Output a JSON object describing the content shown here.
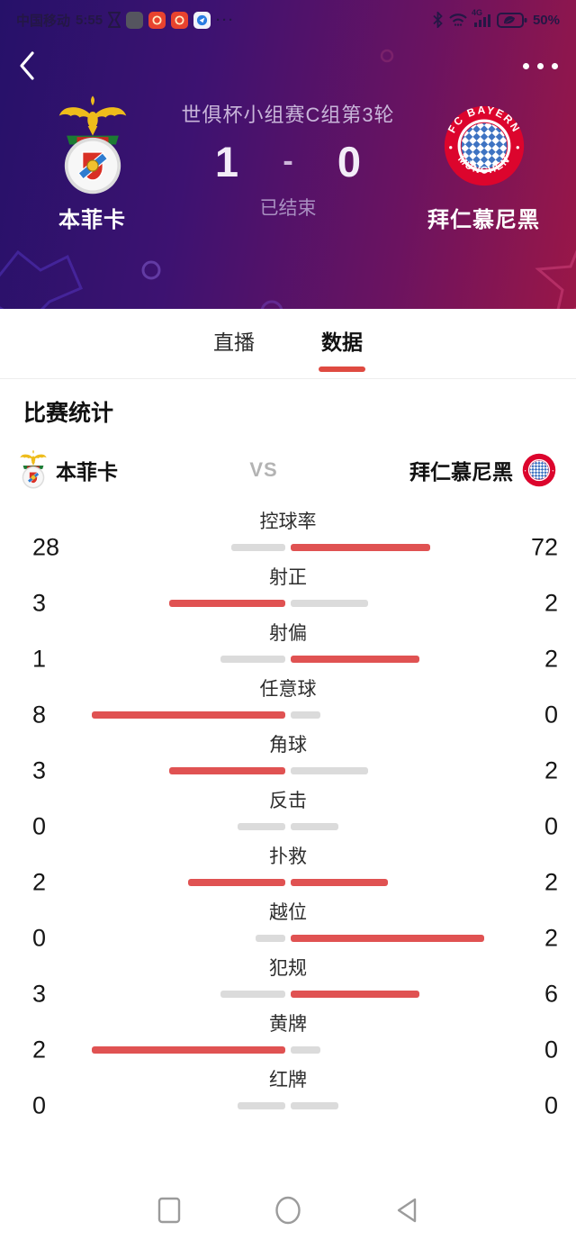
{
  "status_bar": {
    "carrier": "中国移动",
    "time": "5:55",
    "notification_more": "···",
    "network_badge": "4G",
    "battery_percent": "50%"
  },
  "match_header": {
    "competition": "世俱杯小组赛C组第3轮",
    "status": "已结束",
    "score_dash": "-",
    "home": {
      "name": "本菲卡",
      "score": "1"
    },
    "away": {
      "name": "拜仁慕尼黑",
      "score": "0",
      "logo_text_top": "FC BAYERN",
      "logo_text_bottom": "MÜNCHEN"
    }
  },
  "tabs": [
    {
      "label": "直播",
      "active": false
    },
    {
      "label": "数据",
      "active": true
    }
  ],
  "stats": {
    "title": "比赛统计",
    "vs": "VS",
    "home_name": "本菲卡",
    "away_name": "拜仁慕尼黑",
    "rows": [
      {
        "label": "控球率",
        "home": 28,
        "away": 72
      },
      {
        "label": "射正",
        "home": 3,
        "away": 2
      },
      {
        "label": "射偏",
        "home": 1,
        "away": 2
      },
      {
        "label": "任意球",
        "home": 8,
        "away": 0
      },
      {
        "label": "角球",
        "home": 3,
        "away": 2
      },
      {
        "label": "反击",
        "home": 0,
        "away": 0
      },
      {
        "label": "扑救",
        "home": 2,
        "away": 2
      },
      {
        "label": "越位",
        "home": 0,
        "away": 2
      },
      {
        "label": "犯规",
        "home": 3,
        "away": 6
      },
      {
        "label": "黄牌",
        "home": 2,
        "away": 0
      },
      {
        "label": "红牌",
        "home": 0,
        "away": 0
      }
    ]
  },
  "colors": {
    "bar_leading": "#e05252",
    "bar_trailing": "#dbdbdb",
    "tab_accent": "#df4a41"
  }
}
